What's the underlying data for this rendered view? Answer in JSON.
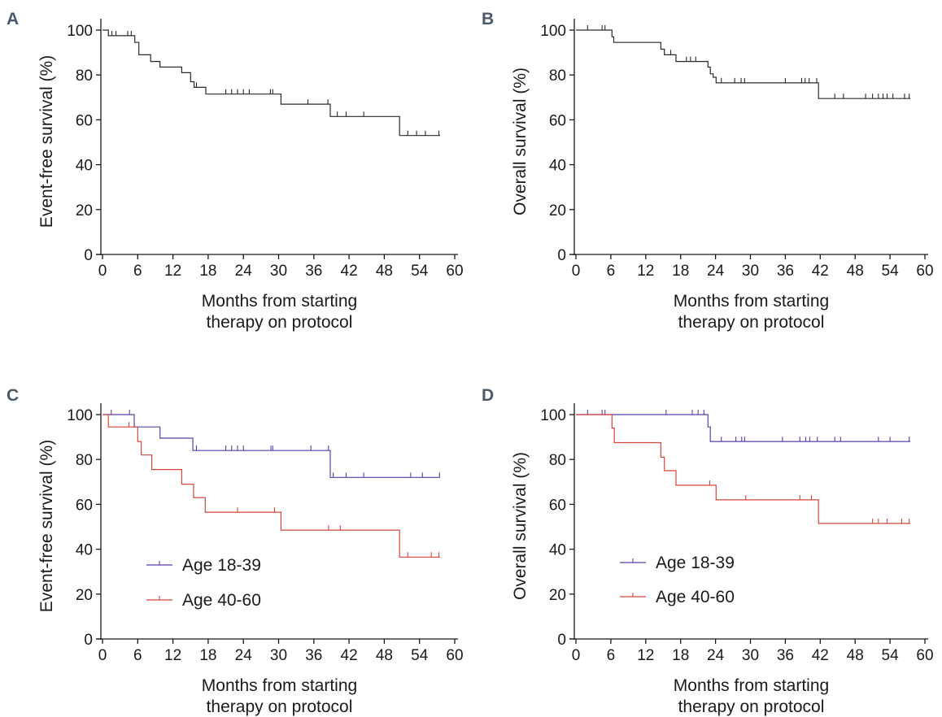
{
  "colors": {
    "axis": "#1a1a1a",
    "overall": "#2a2a2a",
    "young": "#5b3fa8",
    "old": "#d5453a",
    "letter": "#4a5a6a"
  },
  "chart_data": [
    {
      "panel": "A",
      "type": "line",
      "step": true,
      "xlabel": [
        "Months from starting",
        "therapy on protocol"
      ],
      "ylabel": "Event-free survival (%)",
      "xlim": [
        0,
        60
      ],
      "ylim": [
        0,
        100
      ],
      "xticks": [
        "0",
        "6",
        "12",
        "18",
        "24",
        "30",
        "36",
        "42",
        "48",
        "54",
        "60"
      ],
      "yticks": [
        "0",
        "20",
        "40",
        "60",
        "80",
        "100"
      ],
      "series": [
        {
          "color_key": "overall",
          "points": [
            [
              0,
              100
            ],
            [
              1,
              100
            ],
            [
              1,
              97.5
            ],
            [
              5.5,
              97.5
            ],
            [
              5.5,
              94.5
            ],
            [
              6.2,
              94.5
            ],
            [
              6.2,
              89
            ],
            [
              8.2,
              89
            ],
            [
              8.2,
              86
            ],
            [
              9.8,
              86
            ],
            [
              9.8,
              83.5
            ],
            [
              13.5,
              83.5
            ],
            [
              13.5,
              81
            ],
            [
              15,
              81
            ],
            [
              15,
              77
            ],
            [
              15.6,
              77
            ],
            [
              15.6,
              74.5
            ],
            [
              17.6,
              74.5
            ],
            [
              17.6,
              71.5
            ],
            [
              30.4,
              71.5
            ],
            [
              30.4,
              67
            ],
            [
              38.8,
              67
            ],
            [
              38.8,
              61.5
            ],
            [
              50.6,
              61.5
            ],
            [
              50.6,
              53
            ],
            [
              57.5,
              53
            ]
          ],
          "censors": [
            [
              1.6,
              97.5
            ],
            [
              2.3,
              97.5
            ],
            [
              4.3,
              97.5
            ],
            [
              4.9,
              97.5
            ],
            [
              16,
              74.5
            ],
            [
              21,
              71.5
            ],
            [
              22,
              71.5
            ],
            [
              23,
              71.5
            ],
            [
              24,
              71.5
            ],
            [
              25,
              71.5
            ],
            [
              28.6,
              71.5
            ],
            [
              29,
              71.5
            ],
            [
              35,
              67
            ],
            [
              38.4,
              67
            ],
            [
              40,
              61.5
            ],
            [
              41.5,
              61.5
            ],
            [
              44.5,
              61.5
            ],
            [
              52,
              53
            ],
            [
              53.5,
              53
            ],
            [
              55,
              53
            ],
            [
              57.3,
              53
            ]
          ]
        }
      ]
    },
    {
      "panel": "B",
      "type": "line",
      "step": true,
      "xlabel": [
        "Months from starting",
        "therapy on protocol"
      ],
      "ylabel": "Overall survival (%)",
      "xlim": [
        0,
        60
      ],
      "ylim": [
        0,
        100
      ],
      "xticks": [
        "0",
        "6",
        "12",
        "18",
        "24",
        "30",
        "36",
        "42",
        "48",
        "54",
        "60"
      ],
      "yticks": [
        "0",
        "20",
        "40",
        "60",
        "80",
        "100"
      ],
      "series": [
        {
          "color_key": "overall",
          "points": [
            [
              0,
              100
            ],
            [
              6.2,
              100
            ],
            [
              6.2,
              97
            ],
            [
              6.5,
              97
            ],
            [
              6.5,
              94.5
            ],
            [
              14.6,
              94.5
            ],
            [
              14.6,
              91.5
            ],
            [
              15.2,
              91.5
            ],
            [
              15.2,
              89
            ],
            [
              17.2,
              89
            ],
            [
              17.2,
              86
            ],
            [
              22.7,
              86
            ],
            [
              22.7,
              83.5
            ],
            [
              23.1,
              83.5
            ],
            [
              23.1,
              80.5
            ],
            [
              23.6,
              80.5
            ],
            [
              23.6,
              79
            ],
            [
              24.1,
              79
            ],
            [
              24.1,
              76.5
            ],
            [
              41.7,
              76.5
            ],
            [
              41.7,
              69.5
            ],
            [
              57.5,
              69.5
            ]
          ],
          "censors": [
            [
              2,
              100
            ],
            [
              4.5,
              100
            ],
            [
              5,
              100
            ],
            [
              16.3,
              89
            ],
            [
              19,
              86
            ],
            [
              19.7,
              86
            ],
            [
              20.6,
              86
            ],
            [
              25,
              76.5
            ],
            [
              27.3,
              76.5
            ],
            [
              28.4,
              76.5
            ],
            [
              29,
              76.5
            ],
            [
              36,
              76.5
            ],
            [
              38.8,
              76.5
            ],
            [
              39.4,
              76.5
            ],
            [
              40.1,
              76.5
            ],
            [
              41.4,
              76.5
            ],
            [
              44.5,
              69.5
            ],
            [
              46,
              69.5
            ],
            [
              49.8,
              69.5
            ],
            [
              51,
              69.5
            ],
            [
              52,
              69.5
            ],
            [
              52.8,
              69.5
            ],
            [
              53.5,
              69.5
            ],
            [
              54.5,
              69.5
            ],
            [
              56.5,
              69.5
            ],
            [
              57.3,
              69.5
            ]
          ]
        }
      ]
    },
    {
      "panel": "C",
      "type": "line",
      "step": true,
      "xlabel": [
        "Months from starting",
        "therapy on protocol"
      ],
      "ylabel": "Event-free survival (%)",
      "xlim": [
        0,
        60
      ],
      "ylim": [
        0,
        100
      ],
      "xticks": [
        "0",
        "6",
        "12",
        "18",
        "24",
        "30",
        "36",
        "42",
        "48",
        "54",
        "60"
      ],
      "yticks": [
        "0",
        "20",
        "40",
        "60",
        "80",
        "100"
      ],
      "legend": {
        "placement": "lower-left",
        "entries": [
          "Age 18-39",
          "Age 40-60"
        ]
      },
      "series": [
        {
          "name": "Age 18-39",
          "color_key": "young",
          "points": [
            [
              0,
              100
            ],
            [
              5.4,
              100
            ],
            [
              5.4,
              94.5
            ],
            [
              9.8,
              94.5
            ],
            [
              9.8,
              89.5
            ],
            [
              15.4,
              89.5
            ],
            [
              15.4,
              84
            ],
            [
              38.8,
              84
            ],
            [
              38.8,
              72
            ],
            [
              57.5,
              72
            ]
          ],
          "censors": [
            [
              1.5,
              100
            ],
            [
              4.6,
              100
            ],
            [
              16,
              84
            ],
            [
              21,
              84
            ],
            [
              22,
              84
            ],
            [
              23,
              84
            ],
            [
              24,
              84
            ],
            [
              28.7,
              84
            ],
            [
              29,
              84
            ],
            [
              35.5,
              84
            ],
            [
              38.5,
              84
            ],
            [
              39.3,
              72
            ],
            [
              41.5,
              72
            ],
            [
              44.5,
              72
            ],
            [
              52.5,
              72
            ],
            [
              54.5,
              72
            ],
            [
              57.4,
              72
            ]
          ]
        },
        {
          "name": "Age 40-60",
          "color_key": "old",
          "points": [
            [
              0,
              100
            ],
            [
              1,
              100
            ],
            [
              1,
              94.5
            ],
            [
              6,
              94.5
            ],
            [
              6,
              88
            ],
            [
              6.6,
              88
            ],
            [
              6.6,
              82
            ],
            [
              8.4,
              82
            ],
            [
              8.4,
              75.5
            ],
            [
              13.5,
              75.5
            ],
            [
              13.5,
              69
            ],
            [
              15.5,
              69
            ],
            [
              15.5,
              63
            ],
            [
              17.5,
              63
            ],
            [
              17.5,
              56.5
            ],
            [
              30.4,
              56.5
            ],
            [
              30.4,
              48.5
            ],
            [
              50.6,
              48.5
            ],
            [
              50.6,
              36.5
            ],
            [
              57.5,
              36.5
            ]
          ],
          "censors": [
            [
              4.5,
              94.5
            ],
            [
              23,
              56.5
            ],
            [
              29.3,
              56.5
            ],
            [
              38.5,
              48.5
            ],
            [
              40.5,
              48.5
            ],
            [
              52,
              36.5
            ],
            [
              56,
              36.5
            ],
            [
              57.3,
              36.5
            ]
          ]
        }
      ]
    },
    {
      "panel": "D",
      "type": "line",
      "step": true,
      "xlabel": [
        "Months from starting",
        "therapy on protocol"
      ],
      "ylabel": "Overall survival (%)",
      "xlim": [
        0,
        60
      ],
      "ylim": [
        0,
        100
      ],
      "xticks": [
        "0",
        "6",
        "12",
        "18",
        "24",
        "30",
        "36",
        "42",
        "48",
        "54",
        "60"
      ],
      "yticks": [
        "0",
        "20",
        "40",
        "60",
        "80",
        "100"
      ],
      "legend": {
        "placement": "lower-left",
        "entries": [
          "Age 18-39",
          "Age 40-60"
        ]
      },
      "series": [
        {
          "name": "Age 18-39",
          "color_key": "young",
          "points": [
            [
              0,
              100
            ],
            [
              22.7,
              100
            ],
            [
              22.7,
              94.5
            ],
            [
              23.1,
              94.5
            ],
            [
              23.1,
              88
            ],
            [
              57.5,
              88
            ]
          ],
          "censors": [
            [
              2,
              100
            ],
            [
              4.5,
              100
            ],
            [
              5,
              100
            ],
            [
              15.5,
              100
            ],
            [
              20,
              100
            ],
            [
              21,
              100
            ],
            [
              22,
              100
            ],
            [
              25,
              88
            ],
            [
              27.5,
              88
            ],
            [
              28.5,
              88
            ],
            [
              29,
              88
            ],
            [
              35.5,
              88
            ],
            [
              38.5,
              88
            ],
            [
              39.5,
              88
            ],
            [
              40.2,
              88
            ],
            [
              41.5,
              88
            ],
            [
              44.5,
              88
            ],
            [
              45.5,
              88
            ],
            [
              52,
              88
            ],
            [
              54,
              88
            ],
            [
              57.3,
              88
            ]
          ]
        },
        {
          "name": "Age 40-60",
          "color_key": "old",
          "points": [
            [
              0,
              100
            ],
            [
              6.2,
              100
            ],
            [
              6.2,
              94
            ],
            [
              6.6,
              94
            ],
            [
              6.6,
              87.5
            ],
            [
              14.6,
              87.5
            ],
            [
              14.6,
              81
            ],
            [
              15.2,
              81
            ],
            [
              15.2,
              75
            ],
            [
              17.2,
              75
            ],
            [
              17.2,
              68.5
            ],
            [
              24.1,
              68.5
            ],
            [
              24.1,
              62
            ],
            [
              41.7,
              62
            ],
            [
              41.7,
              51.5
            ],
            [
              57.5,
              51.5
            ]
          ],
          "censors": [
            [
              23,
              68.5
            ],
            [
              29.2,
              62
            ],
            [
              38.5,
              62
            ],
            [
              40.5,
              62
            ],
            [
              51,
              51.5
            ],
            [
              52,
              51.5
            ],
            [
              53.5,
              51.5
            ],
            [
              56,
              51.5
            ],
            [
              57.3,
              51.5
            ]
          ]
        }
      ]
    }
  ]
}
